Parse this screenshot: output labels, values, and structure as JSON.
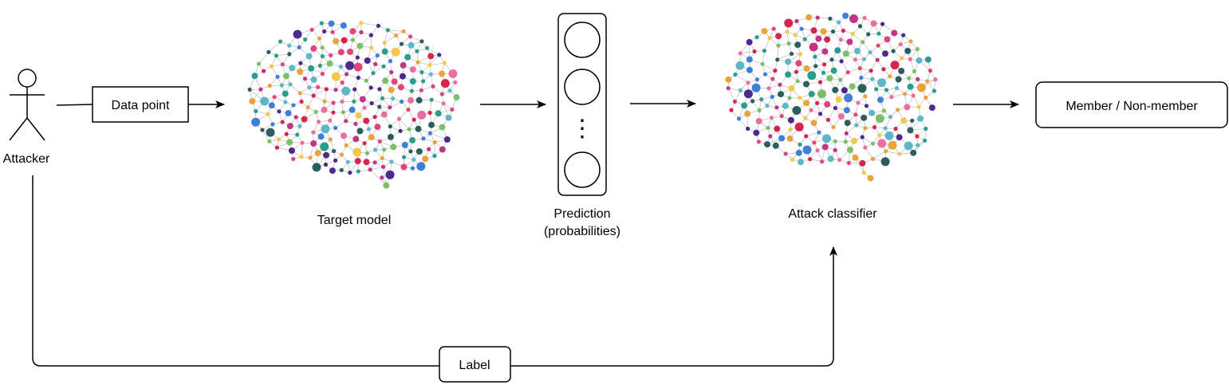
{
  "diagram": {
    "nodes": {
      "attacker": {
        "label": "Attacker",
        "icon": "stick-figure-icon"
      },
      "data_point": {
        "label": "Data point"
      },
      "target_model": {
        "label": "Target model",
        "icon": "neural-network-brain-icon"
      },
      "prediction": {
        "label_line1": "Prediction",
        "label_line2": "(probabilities)",
        "ellipsis": "⋮"
      },
      "attack_classifier": {
        "label": "Attack classifier",
        "icon": "neural-network-brain-icon"
      },
      "output": {
        "label": "Member / Non-member"
      },
      "label_box": {
        "label": "Label"
      }
    },
    "edges": [
      {
        "from": "attacker",
        "to": "data_point"
      },
      {
        "from": "data_point",
        "to": "target_model"
      },
      {
        "from": "target_model",
        "to": "prediction"
      },
      {
        "from": "prediction",
        "to": "attack_classifier"
      },
      {
        "from": "attack_classifier",
        "to": "output"
      },
      {
        "from": "attacker",
        "to": "attack_classifier",
        "via": "label_box"
      }
    ],
    "colors": {
      "stroke": "#000000",
      "edge_lines": "#c4c4c4",
      "node_palette": [
        "#e0457b",
        "#e8a33d",
        "#3f7fd8",
        "#2a9d8f",
        "#d6244d",
        "#4b2a8c",
        "#7bbf6a",
        "#e86fa0",
        "#5fb6c9",
        "#f2c94c",
        "#2d5e5e",
        "#c13584"
      ]
    }
  }
}
